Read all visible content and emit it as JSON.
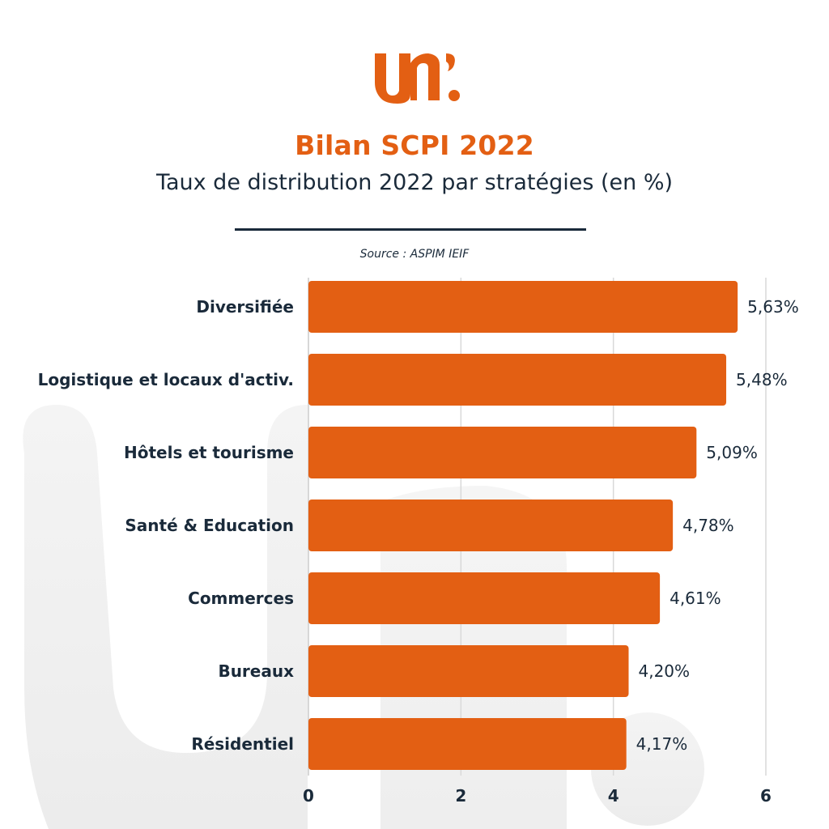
{
  "brand": {
    "accent": "#e35f13",
    "text": "#1a2a3a"
  },
  "header": {
    "title": "Bilan SCPI 2022",
    "subtitle": "Taux de distribution 2022 par stratégies (en %)",
    "source": "Source : ASPIM IEIF"
  },
  "chart_data": {
    "type": "bar",
    "orientation": "horizontal",
    "categories": [
      "Diversifiée",
      "Logistique et locaux d'activ.",
      "Hôtels et tourisme",
      "Santé & Education",
      "Commerces",
      "Bureaux",
      "Résidentiel"
    ],
    "values": [
      5.63,
      5.48,
      5.09,
      4.78,
      4.61,
      4.2,
      4.17
    ],
    "value_labels": [
      "5,63%",
      "5,48%",
      "5,09%",
      "4,78%",
      "4,61%",
      "4,20%",
      "4,17%"
    ],
    "xlim": [
      0,
      6
    ],
    "xticks": [
      0,
      2,
      4,
      6
    ],
    "grid": true,
    "bar_color": "#e35f13"
  }
}
